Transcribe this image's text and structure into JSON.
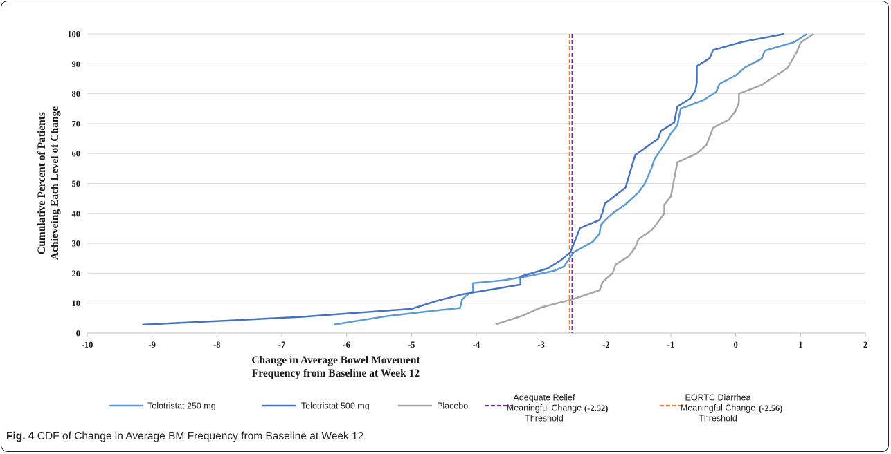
{
  "caption": {
    "fig_label": "Fig. 4",
    "text": "CDF of Change in Average BM Frequency from Baseline at Week 12"
  },
  "chart_data": {
    "type": "line",
    "title": "",
    "xlabel_lines": [
      "Change in  Average Bowel Movement",
      "Frequency from Baseline at Week 12"
    ],
    "ylabel_lines": [
      "Cumulative  Percent of Patients",
      "Achieveing Each Level of Change"
    ],
    "xlim": [
      -10,
      2
    ],
    "ylim": [
      0,
      100
    ],
    "xticks": [
      "-10",
      "-9",
      "-8",
      "-7",
      "-6",
      "-5",
      "-4",
      "-3",
      "-2",
      "-1",
      "0",
      "1",
      "2"
    ],
    "yticks": [
      "0",
      "10",
      "20",
      "30",
      "40",
      "50",
      "60",
      "70",
      "80",
      "90",
      "100"
    ],
    "grid": "horizontal",
    "legend_position": "bottom",
    "series": [
      {
        "name": "Telotristat 250 mg",
        "color": "#5b9bd5",
        "style": "solid",
        "points": [
          [
            -6.2,
            2.8
          ],
          [
            -5.8,
            4.2
          ],
          [
            -5.4,
            5.6
          ],
          [
            -5.0,
            6.6
          ],
          [
            -4.6,
            7.6
          ],
          [
            -4.25,
            8.4
          ],
          [
            -4.22,
            11.2
          ],
          [
            -4.15,
            12.6
          ],
          [
            -4.05,
            13.9
          ],
          [
            -4.05,
            16.7
          ],
          [
            -3.6,
            17.6
          ],
          [
            -3.2,
            19.0
          ],
          [
            -2.8,
            20.8
          ],
          [
            -2.65,
            22.2
          ],
          [
            -2.5,
            27.0
          ],
          [
            -2.2,
            30.6
          ],
          [
            -2.1,
            33.3
          ],
          [
            -2.08,
            36.1
          ],
          [
            -2.0,
            38.0
          ],
          [
            -1.9,
            40.0
          ],
          [
            -1.7,
            43.0
          ],
          [
            -1.5,
            47.0
          ],
          [
            -1.4,
            50.0
          ],
          [
            -1.3,
            55.0
          ],
          [
            -1.25,
            58.3
          ],
          [
            -1.1,
            63.0
          ],
          [
            -1.0,
            66.7
          ],
          [
            -0.9,
            69.4
          ],
          [
            -0.85,
            75.0
          ],
          [
            -0.5,
            77.8
          ],
          [
            -0.3,
            80.6
          ],
          [
            -0.25,
            83.3
          ],
          [
            0.0,
            86.1
          ],
          [
            0.15,
            88.9
          ],
          [
            0.4,
            91.7
          ],
          [
            0.45,
            94.4
          ],
          [
            0.9,
            97.2
          ],
          [
            1.1,
            100
          ]
        ]
      },
      {
        "name": "Telotristat 500 mg",
        "color": "#4472c4",
        "style": "solid",
        "points": [
          [
            -9.15,
            2.8
          ],
          [
            -8.0,
            4.0
          ],
          [
            -6.7,
            5.4
          ],
          [
            -5.0,
            8.1
          ],
          [
            -4.6,
            10.8
          ],
          [
            -4.2,
            13.0
          ],
          [
            -3.32,
            16.2
          ],
          [
            -3.32,
            18.9
          ],
          [
            -2.9,
            21.6
          ],
          [
            -2.7,
            24.3
          ],
          [
            -2.55,
            27.0
          ],
          [
            -2.5,
            29.7
          ],
          [
            -2.45,
            32.4
          ],
          [
            -2.4,
            35.1
          ],
          [
            -2.1,
            37.8
          ],
          [
            -2.05,
            40.5
          ],
          [
            -2.02,
            43.2
          ],
          [
            -1.7,
            48.6
          ],
          [
            -1.55,
            59.5
          ],
          [
            -1.2,
            64.9
          ],
          [
            -1.15,
            67.6
          ],
          [
            -0.95,
            70.3
          ],
          [
            -0.9,
            75.7
          ],
          [
            -0.7,
            78.4
          ],
          [
            -0.62,
            81.1
          ],
          [
            -0.6,
            83.8
          ],
          [
            -0.6,
            89.2
          ],
          [
            -0.4,
            91.9
          ],
          [
            -0.35,
            94.6
          ],
          [
            0.1,
            97.3
          ],
          [
            0.75,
            100
          ]
        ]
      },
      {
        "name": "Placebo",
        "color": "#a5a5a5",
        "style": "solid",
        "points": [
          [
            -3.7,
            2.9
          ],
          [
            -3.3,
            5.7
          ],
          [
            -3.0,
            8.6
          ],
          [
            -2.5,
            11.4
          ],
          [
            -2.1,
            14.3
          ],
          [
            -2.05,
            17.1
          ],
          [
            -1.9,
            20.0
          ],
          [
            -1.85,
            22.9
          ],
          [
            -1.65,
            25.7
          ],
          [
            -1.55,
            28.6
          ],
          [
            -1.5,
            31.4
          ],
          [
            -1.3,
            34.3
          ],
          [
            -1.2,
            37.1
          ],
          [
            -1.1,
            40.0
          ],
          [
            -1.1,
            42.9
          ],
          [
            -1.0,
            45.7
          ],
          [
            -0.95,
            51.4
          ],
          [
            -0.9,
            57.1
          ],
          [
            -0.6,
            60.0
          ],
          [
            -0.45,
            62.9
          ],
          [
            -0.4,
            65.7
          ],
          [
            -0.35,
            68.6
          ],
          [
            -0.1,
            71.4
          ],
          [
            0.0,
            74.3
          ],
          [
            0.05,
            77.1
          ],
          [
            0.05,
            80.0
          ],
          [
            0.4,
            82.9
          ],
          [
            0.8,
            88.6
          ],
          [
            0.95,
            94.3
          ],
          [
            1.0,
            97.1
          ],
          [
            1.2,
            100
          ]
        ]
      }
    ],
    "thresholds": [
      {
        "name_lines": [
          "Adequate Relief",
          "Meaningful Change",
          "Threshold"
        ],
        "value_label": "(-2.52)",
        "x": -2.52,
        "color": "#7030a0",
        "style": "dashed"
      },
      {
        "name_lines": [
          "EORTC Diarrhea",
          "Meaningful Change",
          "Threshold"
        ],
        "value_label": "(-2.56)",
        "x": -2.56,
        "color": "#ed7d31",
        "style": "dashed"
      }
    ]
  }
}
